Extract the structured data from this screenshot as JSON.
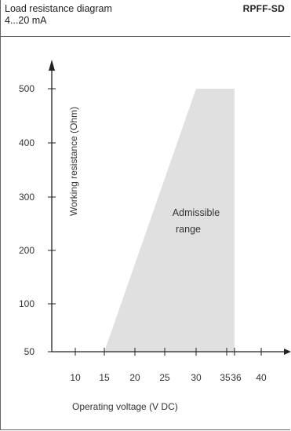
{
  "header": {
    "title": "Load resistance diagram",
    "subtitle": "4...20 mA",
    "model": "RPFF-SD"
  },
  "chart_data": {
    "type": "area",
    "title": "Load resistance diagram",
    "xlabel": "Operating voltage  (V DC)",
    "ylabel": "Working resistance  (Ohm)",
    "x_ticks": [
      "10",
      "15",
      "20",
      "25",
      "30",
      "35",
      "36",
      "40"
    ],
    "y_ticks": [
      "50",
      "100",
      "200",
      "300",
      "400",
      "500"
    ],
    "region": {
      "label_line1": "Admissible",
      "label_line2": "range",
      "color": "#e0e0e0",
      "points": [
        {
          "x": 15,
          "y": 50
        },
        {
          "x": 30,
          "y": 500
        },
        {
          "x": 36,
          "y": 500
        },
        {
          "x": 36,
          "y": 50
        }
      ]
    }
  }
}
